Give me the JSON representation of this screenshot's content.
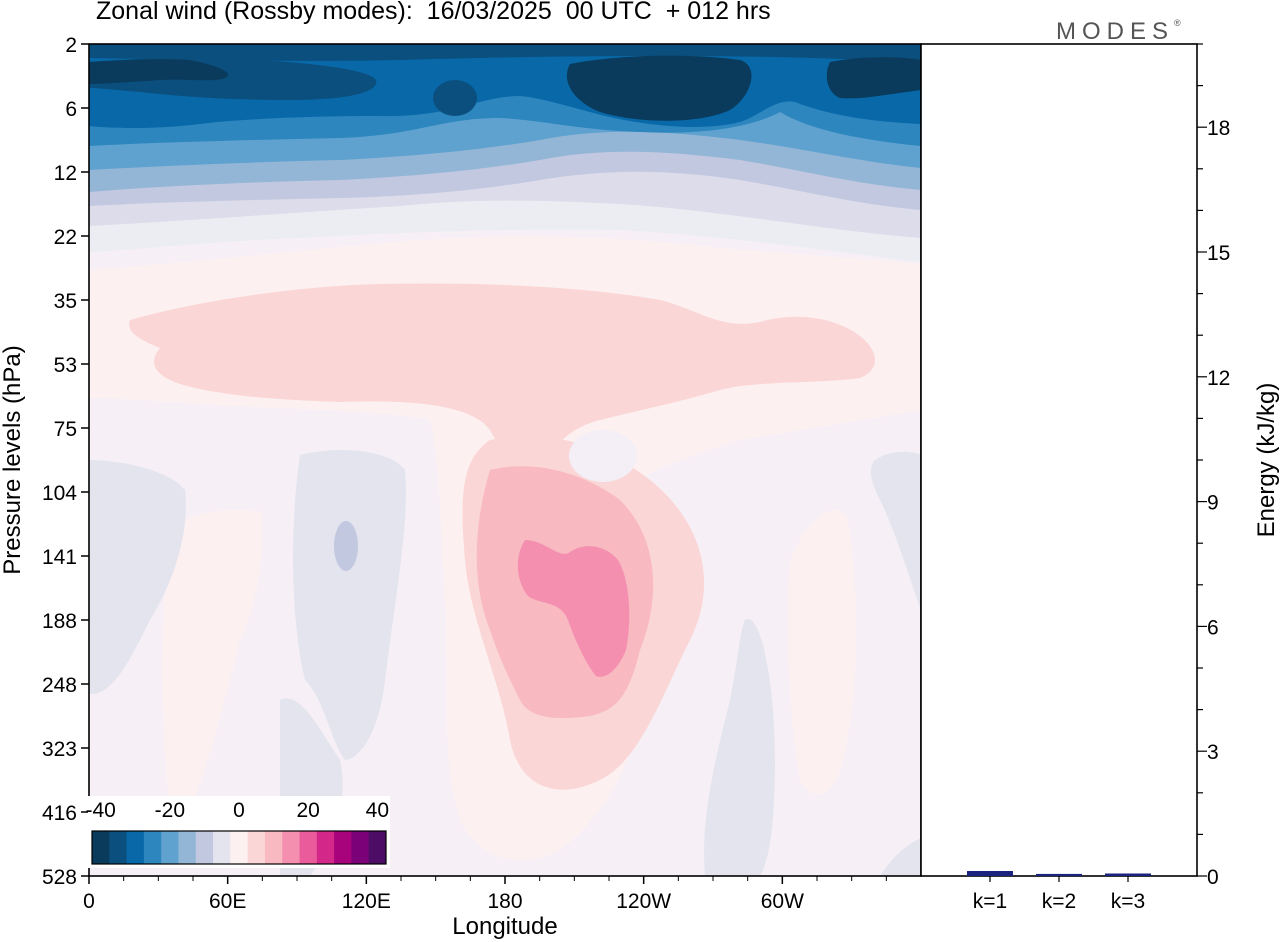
{
  "title": "Zonal wind (Rossby modes):  16/03/2025  00 UTC  + 012 hrs",
  "brand": {
    "name": "MODES",
    "mark": "®"
  },
  "chart_data": [
    {
      "type": "heatmap",
      "title": "Zonal wind (Rossby modes):  16/03/2025  00 UTC  + 012 hrs",
      "xlabel": "Longitude",
      "ylabel": "Pressure levels (hPa)",
      "x_ticks": [
        "0",
        "60E",
        "120E",
        "180",
        "120W",
        "60W"
      ],
      "y_ticks": [
        "2",
        "6",
        "12",
        "22",
        "35",
        "53",
        "75",
        "104",
        "141",
        "188",
        "248",
        "323",
        "416",
        "528"
      ],
      "y_scale": "log (reversed, 2 at top, 528 at bottom)",
      "colorbar": {
        "tick_labels": [
          "-40",
          "-20",
          "0",
          "20",
          "40"
        ],
        "colors": [
          "#0a3b5c",
          "#0a4f7e",
          "#0868a8",
          "#2d86be",
          "#5fa2cf",
          "#94b6d6",
          "#c2c8e0",
          "#e4e4ef",
          "#fdf0f0",
          "#fbd6d6",
          "#f8b9c1",
          "#f48faf",
          "#ea5b9b",
          "#d3288a",
          "#a8037c",
          "#7a0177",
          "#4d0d66"
        ]
      },
      "features": [
        {
          "name": "strong easterlies (upper levels)",
          "value_range": [
            -45,
            -25
          ]
        },
        {
          "name": "jet maximum near 150W",
          "value_range": [
            15,
            20
          ]
        }
      ]
    },
    {
      "type": "bar",
      "ylabel": "Energy (kJ/kg)",
      "y_ticks": [
        "0",
        "3",
        "6",
        "9",
        "12",
        "15",
        "18"
      ],
      "ylim": [
        0,
        20
      ],
      "categories": [
        "k=1",
        "k=2",
        "k=3"
      ],
      "values": [
        0.12,
        0.05,
        0.06
      ],
      "bar_color": "#1a237e"
    }
  ]
}
